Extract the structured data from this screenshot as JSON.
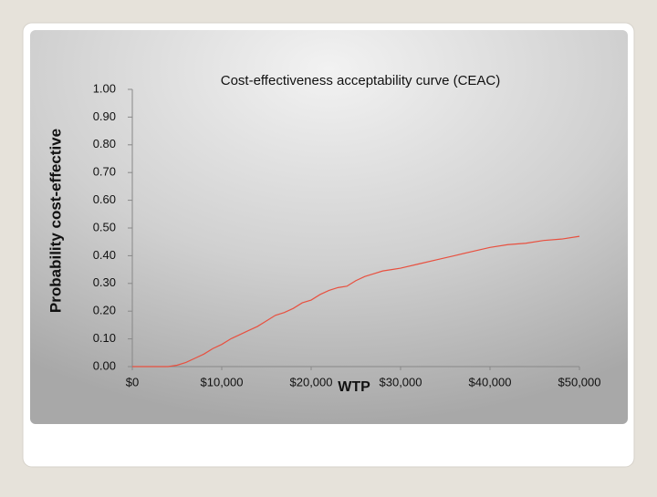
{
  "chart_data": {
    "type": "line",
    "title": "Cost-effectiveness acceptability curve (CEAC)",
    "x_label": "WTP",
    "y_label": "Probability cost-effective",
    "x": [
      0,
      2000,
      4000,
      5000,
      6000,
      7000,
      8000,
      9000,
      10000,
      11000,
      12000,
      13000,
      14000,
      15000,
      16000,
      17000,
      18000,
      19000,
      20000,
      21000,
      22000,
      23000,
      24000,
      25000,
      26000,
      27000,
      28000,
      29000,
      30000,
      32000,
      34000,
      36000,
      38000,
      40000,
      42000,
      44000,
      46000,
      48000,
      50000
    ],
    "values": [
      0,
      0,
      0,
      0.005,
      0.015,
      0.03,
      0.045,
      0.065,
      0.08,
      0.1,
      0.115,
      0.13,
      0.145,
      0.165,
      0.185,
      0.195,
      0.21,
      0.23,
      0.24,
      0.26,
      0.275,
      0.285,
      0.29,
      0.31,
      0.325,
      0.335,
      0.345,
      0.35,
      0.355,
      0.37,
      0.385,
      0.4,
      0.415,
      0.43,
      0.44,
      0.445,
      0.455,
      0.46,
      0.47
    ],
    "color": "#e8503f",
    "xlim": [
      0,
      50000
    ],
    "xticks": [
      {
        "value": 0,
        "label": "$0"
      },
      {
        "value": 10000,
        "label": "$10,000"
      },
      {
        "value": 20000,
        "label": "$20,000"
      },
      {
        "value": 30000,
        "label": "$30,000"
      },
      {
        "value": 40000,
        "label": "$40,000"
      },
      {
        "value": 50000,
        "label": "$50,000"
      }
    ],
    "ylim": [
      0,
      1
    ],
    "yticks": [
      {
        "value": 0,
        "label": "0.00"
      },
      {
        "value": 0.1,
        "label": "0.10"
      },
      {
        "value": 0.2,
        "label": "0.20"
      },
      {
        "value": 0.3,
        "label": "0.30"
      },
      {
        "value": 0.4,
        "label": "0.40"
      },
      {
        "value": 0.5,
        "label": "0.50"
      },
      {
        "value": 0.6,
        "label": "0.60"
      },
      {
        "value": 0.7,
        "label": "0.70"
      },
      {
        "value": 0.8,
        "label": "0.80"
      },
      {
        "value": 0.9,
        "label": "0.90"
      },
      {
        "value": 1,
        "label": "1.00"
      }
    ],
    "grid": false
  }
}
